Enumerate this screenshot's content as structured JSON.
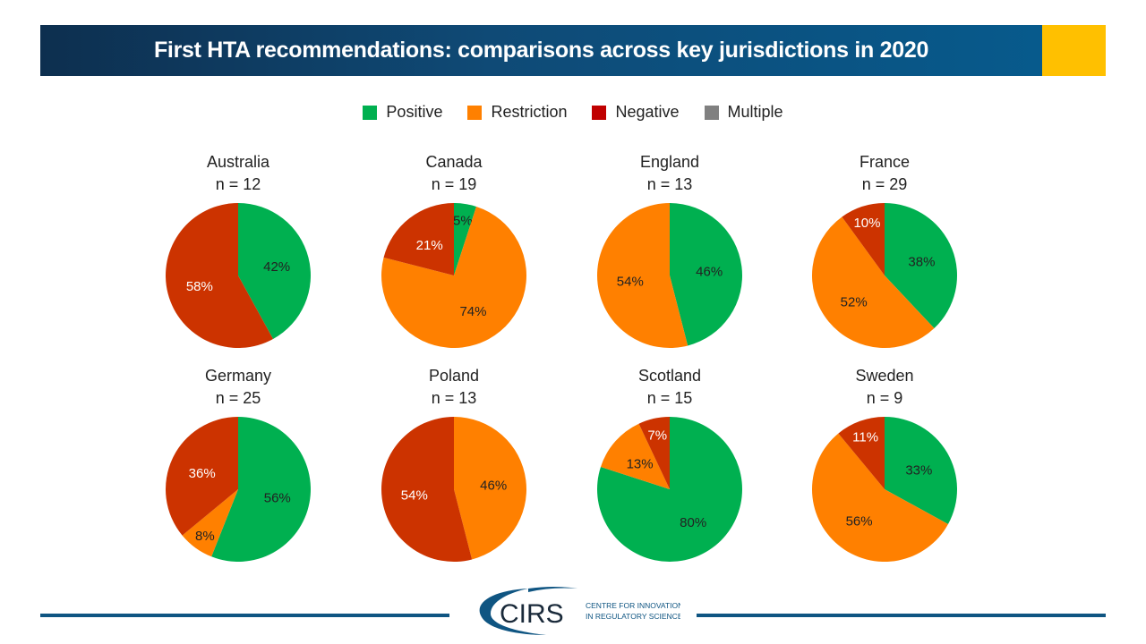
{
  "title": "First HTA recommendations: comparisons across key jurisdictions in 2020",
  "colors": {
    "banner": "#0f4a76",
    "accent": "#ffc000",
    "Positive": "#00b050",
    "Restriction": "#ff8000",
    "Negative": "#cc3300",
    "Negative_legend": "#c00000",
    "Multiple": "#808080"
  },
  "logo": {
    "mark": "CIRS",
    "line1": "Centre for Innovation",
    "line2": "in Regulatory Science"
  },
  "chart_data": {
    "type": "pie",
    "legend": {
      "placement": "top",
      "entries": [
        "Positive",
        "Restriction",
        "Negative",
        "Multiple"
      ]
    },
    "charts": [
      {
        "title": "Australia",
        "n": "n = 12",
        "slices": [
          {
            "category": "Positive",
            "value": 42,
            "label": "42%"
          },
          {
            "category": "Negative",
            "value": 58,
            "label": "58%"
          }
        ]
      },
      {
        "title": "Canada",
        "n": "n = 19",
        "slices": [
          {
            "category": "Positive",
            "value": 5,
            "label": "5%"
          },
          {
            "category": "Restriction",
            "value": 74,
            "label": "74%"
          },
          {
            "category": "Negative",
            "value": 21,
            "label": "21%"
          }
        ]
      },
      {
        "title": "England",
        "n": "n = 13",
        "slices": [
          {
            "category": "Positive",
            "value": 46,
            "label": "46%"
          },
          {
            "category": "Restriction",
            "value": 54,
            "label": "54%"
          }
        ]
      },
      {
        "title": "France",
        "n": "n = 29",
        "slices": [
          {
            "category": "Positive",
            "value": 38,
            "label": "38%"
          },
          {
            "category": "Restriction",
            "value": 52,
            "label": "52%"
          },
          {
            "category": "Negative",
            "value": 10,
            "label": "10%"
          }
        ]
      },
      {
        "title": "Germany",
        "n": "n = 25",
        "slices": [
          {
            "category": "Positive",
            "value": 56,
            "label": "56%"
          },
          {
            "category": "Restriction",
            "value": 8,
            "label": "8%"
          },
          {
            "category": "Negative",
            "value": 36,
            "label": "36%"
          }
        ]
      },
      {
        "title": "Poland",
        "n": "n = 13",
        "slices": [
          {
            "category": "Restriction",
            "value": 46,
            "label": "46%"
          },
          {
            "category": "Negative",
            "value": 54,
            "label": "54%"
          }
        ]
      },
      {
        "title": "Scotland",
        "n": "n = 15",
        "slices": [
          {
            "category": "Positive",
            "value": 80,
            "label": "80%"
          },
          {
            "category": "Restriction",
            "value": 13,
            "label": "13%"
          },
          {
            "category": "Negative",
            "value": 7,
            "label": "7%"
          }
        ]
      },
      {
        "title": "Sweden",
        "n": "n = 9",
        "slices": [
          {
            "category": "Positive",
            "value": 33,
            "label": "33%"
          },
          {
            "category": "Restriction",
            "value": 56,
            "label": "56%"
          },
          {
            "category": "Negative",
            "value": 11,
            "label": "11%"
          }
        ]
      }
    ]
  }
}
